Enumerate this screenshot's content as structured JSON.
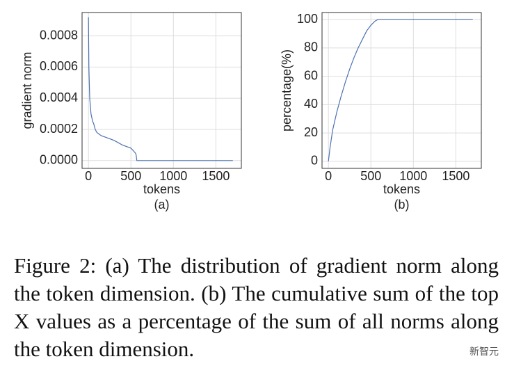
{
  "chart_data": [
    {
      "type": "line",
      "subcaption": "(a)",
      "x_label": "tokens",
      "y_label": "gradient norm",
      "x": [
        0,
        5,
        15,
        30,
        50,
        60,
        80,
        100,
        150,
        200,
        300,
        400,
        500,
        550,
        560,
        570,
        1700
      ],
      "series": [
        {
          "color": "#4c72b0",
          "values": [
            0.00092,
            0.0006,
            0.0004,
            0.0003,
            0.00025,
            0.00024,
            0.0002,
            0.00018,
            0.00016,
            0.00015,
            0.00013,
            0.0001,
            8e-05,
            5e-05,
            4e-05,
            0,
            0
          ]
        }
      ],
      "xlim": [
        -75,
        1800
      ],
      "xticks": [
        0,
        500,
        1000,
        1500
      ],
      "ylim": [
        -5e-05,
        0.00095
      ],
      "yticks": [
        {
          "value": 0,
          "label": "0.0000"
        },
        0.0002,
        0.0004,
        0.0006,
        0.0008
      ],
      "grid": true
    },
    {
      "type": "line",
      "subcaption": "(b)",
      "x_label": "tokens",
      "y_label": "percentage(%)",
      "x": [
        0,
        20,
        50,
        100,
        150,
        200,
        250,
        300,
        350,
        400,
        450,
        500,
        550,
        580,
        1700
      ],
      "series": [
        {
          "color": "#4c72b0",
          "values": [
            0,
            10,
            22,
            35,
            46,
            56,
            65,
            73,
            80,
            86,
            92,
            96,
            99,
            100,
            100
          ]
        }
      ],
      "xlim": [
        -75,
        1800
      ],
      "xticks": [
        0,
        500,
        1000,
        1500
      ],
      "ylim": [
        -5,
        105
      ],
      "yticks": [
        0,
        20,
        40,
        60,
        80,
        100
      ],
      "grid": true
    }
  ],
  "caption": "Figure 2: (a) The distribution of gradient norm along the token dimension. (b) The cumulative sum of the top X values as a percentage of the sum of all norms along the token dimension.",
  "watermark": "新智元"
}
